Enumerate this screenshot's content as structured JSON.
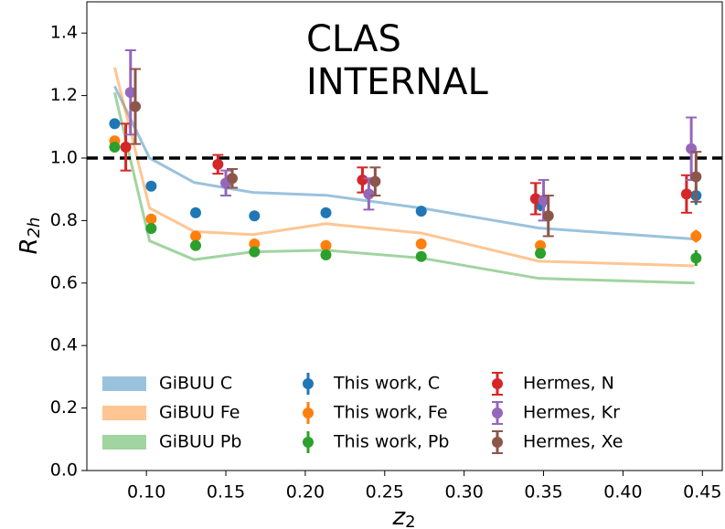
{
  "chart_data": {
    "type": "errorbar",
    "annotation": [
      "CLAS",
      "INTERNAL"
    ],
    "xlabel": {
      "text": "z",
      "sub": "2"
    },
    "ylabel": {
      "text": "R",
      "sub": "2h"
    },
    "xlim": [
      0.0625,
      0.4625
    ],
    "ylim": [
      0,
      1.5
    ],
    "xticks": [
      {
        "value": 0.1,
        "label": "0.10"
      },
      0.15,
      {
        "value": 0.2,
        "label": "0.20"
      },
      0.25,
      {
        "value": 0.3,
        "label": "0.30"
      },
      0.35,
      {
        "value": 0.4,
        "label": "0.40"
      },
      0.45
    ],
    "yticks": [
      {
        "value": 0,
        "label": "0.0"
      },
      0.2,
      0.4,
      0.6,
      0.8,
      {
        "value": 1,
        "label": "1.0"
      },
      1.2,
      1.4
    ],
    "hline": 1,
    "legend": "lower left",
    "series": [
      {
        "name": "GiBUU C",
        "kind": "line",
        "color": "#1f77b4",
        "opacity": 0.45,
        "x": [
          0.08,
          0.102,
          0.13,
          0.167,
          0.213,
          0.273,
          0.347,
          0.445
        ],
        "values": [
          1.23,
          1.0,
          0.922,
          0.89,
          0.881,
          0.84,
          0.776,
          0.741
        ]
      },
      {
        "name": "GiBUU Fe",
        "kind": "line",
        "color": "#ff7f0e",
        "opacity": 0.45,
        "x": [
          0.08,
          0.102,
          0.13,
          0.167,
          0.213,
          0.273,
          0.347,
          0.445
        ],
        "values": [
          1.29,
          0.84,
          0.765,
          0.755,
          0.79,
          0.76,
          0.67,
          0.655
        ]
      },
      {
        "name": "GiBUU Pb",
        "kind": "line",
        "color": "#2ca02c",
        "opacity": 0.45,
        "x": [
          0.08,
          0.102,
          0.13,
          0.167,
          0.213,
          0.273,
          0.347,
          0.445
        ],
        "values": [
          1.21,
          0.735,
          0.675,
          0.7,
          0.705,
          0.68,
          0.615,
          0.6
        ]
      },
      {
        "name": "This work, C",
        "kind": "errorbar",
        "caps": false,
        "color": "#1f77b4",
        "x": [
          0.08,
          0.103,
          0.131,
          0.168,
          0.213,
          0.273,
          0.348,
          0.446
        ],
        "values": [
          1.11,
          0.91,
          0.825,
          0.815,
          0.825,
          0.83,
          0.85,
          0.88
        ],
        "errors": [
          0.01,
          0.01,
          0.01,
          0.01,
          0.01,
          0.012,
          0.02,
          0.03
        ]
      },
      {
        "name": "This work, Fe",
        "kind": "errorbar",
        "caps": false,
        "color": "#ff7f0e",
        "x": [
          0.08,
          0.103,
          0.131,
          0.168,
          0.213,
          0.273,
          0.348,
          0.446
        ],
        "values": [
          1.055,
          0.805,
          0.75,
          0.725,
          0.72,
          0.725,
          0.72,
          0.75
        ],
        "errors": [
          0.01,
          0.01,
          0.01,
          0.01,
          0.01,
          0.012,
          0.015,
          0.02
        ]
      },
      {
        "name": "This work, Pb",
        "kind": "errorbar",
        "caps": false,
        "color": "#2ca02c",
        "x": [
          0.08,
          0.103,
          0.131,
          0.168,
          0.213,
          0.273,
          0.348,
          0.446
        ],
        "values": [
          1.035,
          0.775,
          0.72,
          0.7,
          0.69,
          0.685,
          0.695,
          0.68
        ],
        "errors": [
          0.01,
          0.012,
          0.012,
          0.01,
          0.01,
          0.012,
          0.015,
          0.025
        ]
      },
      {
        "name": "Hermes, N",
        "kind": "errorbar",
        "caps": true,
        "color": "#d62728",
        "x": [
          0.087,
          0.145,
          0.236,
          0.345,
          0.44
        ],
        "values": [
          1.035,
          0.98,
          0.93,
          0.87,
          0.885
        ],
        "errors": [
          0.075,
          0.03,
          0.04,
          0.05,
          0.06
        ]
      },
      {
        "name": "Hermes, Kr",
        "kind": "errorbar",
        "caps": true,
        "color": "#9467bd",
        "x": [
          0.09,
          0.15,
          0.24,
          0.35,
          0.443
        ],
        "values": [
          1.21,
          0.92,
          0.885,
          0.865,
          1.03
        ],
        "errors": [
          0.135,
          0.04,
          0.05,
          0.065,
          0.1
        ]
      },
      {
        "name": "Hermes, Xe",
        "kind": "errorbar",
        "caps": true,
        "color": "#8c564b",
        "x": [
          0.093,
          0.154,
          0.244,
          0.353,
          0.446
        ],
        "values": [
          1.165,
          0.935,
          0.925,
          0.815,
          0.94
        ],
        "errors": [
          0.12,
          0.03,
          0.045,
          0.065,
          0.08
        ]
      }
    ]
  }
}
